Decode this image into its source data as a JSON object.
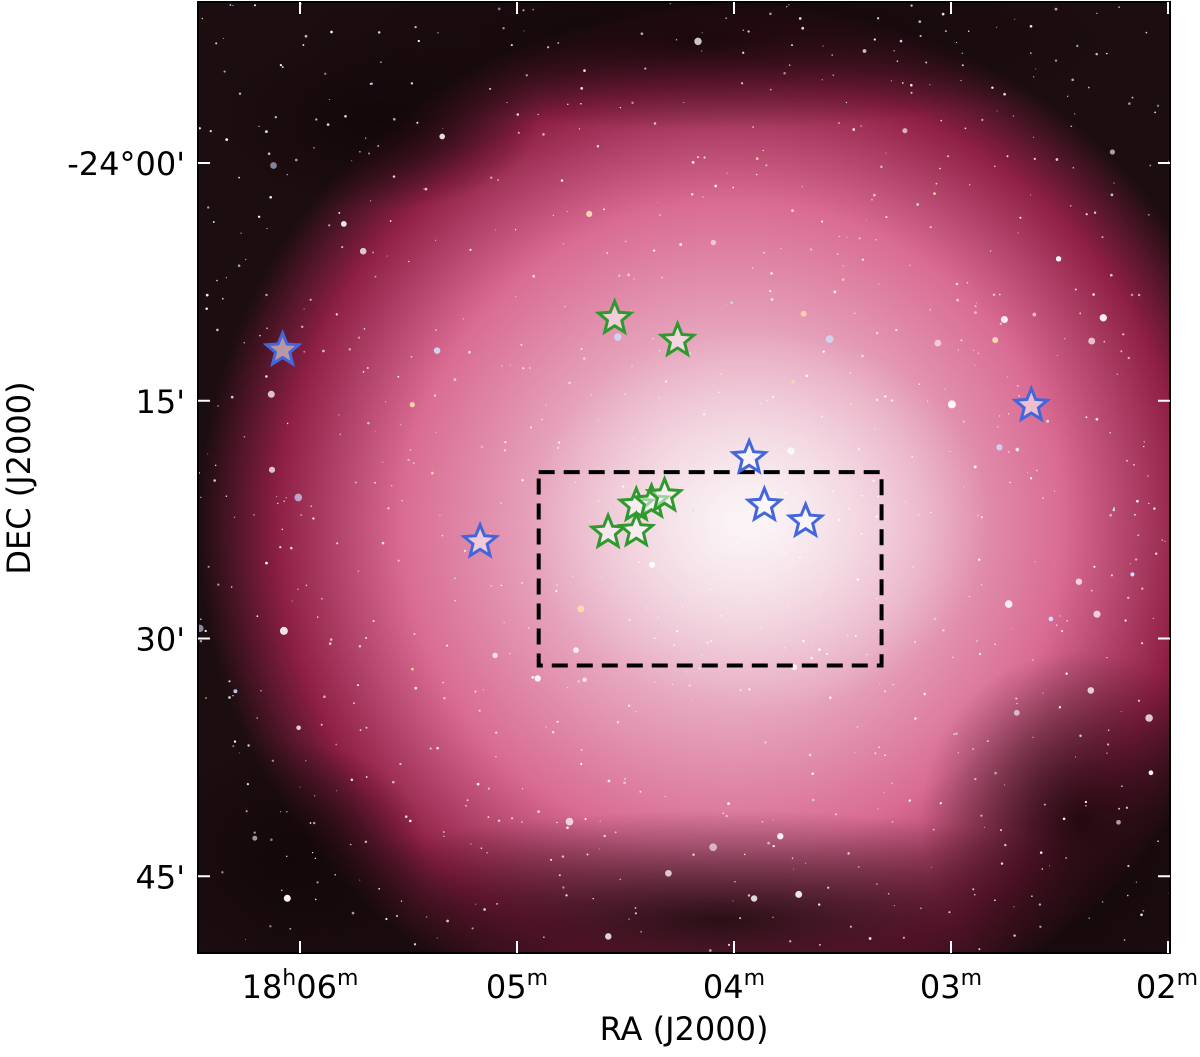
{
  "figure": {
    "xlabel": "RA (J2000)",
    "ylabel": "DEC (J2000)",
    "x_ticks": [
      {
        "label": "18",
        "sup1": "h",
        "mid": "06",
        "sup2": "m",
        "value_minutes": 6
      },
      {
        "label": "05",
        "sup1": "m",
        "value_minutes": 5
      },
      {
        "label": "04",
        "sup1": "m",
        "value_minutes": 4
      },
      {
        "label": "03",
        "sup1": "m",
        "value_minutes": 3
      },
      {
        "label": "02",
        "sup1": "m",
        "value_minutes": 2
      }
    ],
    "y_ticks": [
      {
        "label": "-24°00'",
        "value_arcmin": 0
      },
      {
        "label": "15'",
        "value_arcmin": 15
      },
      {
        "label": "30'",
        "value_arcmin": 30
      },
      {
        "label": "45'",
        "value_arcmin": 45
      }
    ],
    "colors": {
      "nebula_core": "#f2dce4",
      "nebula_mid": "#d96b93",
      "nebula_outer": "#8e1f45",
      "background_sky": "#1c0d10",
      "green_marker": "#2e9a2e",
      "blue_marker": "#4466dd",
      "box": "#000000"
    },
    "markers": {
      "green": [
        {
          "ra_min": 4.55,
          "dec_arcmin": 9.8
        },
        {
          "ra_min": 4.26,
          "dec_arcmin": 11.2
        },
        {
          "ra_min": 4.45,
          "dec_arcmin": 21.6
        },
        {
          "ra_min": 4.38,
          "dec_arcmin": 21.4
        },
        {
          "ra_min": 4.32,
          "dec_arcmin": 21.0
        },
        {
          "ra_min": 4.58,
          "dec_arcmin": 23.3
        },
        {
          "ra_min": 4.45,
          "dec_arcmin": 23.2
        }
      ],
      "blue": [
        {
          "ra_min": 6.08,
          "dec_arcmin": 11.8
        },
        {
          "ra_min": 2.63,
          "dec_arcmin": 15.3
        },
        {
          "ra_min": 3.93,
          "dec_arcmin": 18.6
        },
        {
          "ra_min": 3.86,
          "dec_arcmin": 21.6
        },
        {
          "ra_min": 3.67,
          "dec_arcmin": 22.6
        },
        {
          "ra_min": 5.17,
          "dec_arcmin": 23.9
        }
      ]
    },
    "box": {
      "ra_min_left": 4.9,
      "ra_min_right": 3.32,
      "dec_arcmin_top": 19.5,
      "dec_arcmin_bottom": 31.7
    }
  }
}
